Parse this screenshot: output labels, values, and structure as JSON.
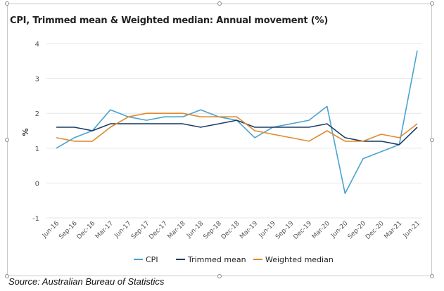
{
  "title": "CPI, Trimmed mean & Weighted median: Annual movement (%)",
  "source": "Source: Australian Bureau of Statistics",
  "colors": {
    "CPI": "#4aa3cf",
    "Trimmed mean": "#1b3f66",
    "Weighted median": "#e0892e",
    "grid": "#e6e6e6",
    "text": "#555555"
  },
  "chart_data": {
    "type": "line",
    "title": "CPI, Trimmed mean & Weighted median: Annual movement (%)",
    "ylabel": "%",
    "xlabel": "",
    "ylim": [
      -1,
      4
    ],
    "yticks": [
      -1,
      0,
      1,
      2,
      3,
      4
    ],
    "grid": "horizontal",
    "legend": "bottom",
    "categories": [
      "Jun-16",
      "Sep-16",
      "Dec-16",
      "Mar-17",
      "Jun-17",
      "Sep-17",
      "Dec-17",
      "Mar-18",
      "Jun-18",
      "Sep-18",
      "Dec-18",
      "Mar-19",
      "Jun-19",
      "Sep-19",
      "Dec-19",
      "Mar-20",
      "Jun-20",
      "Sep-20",
      "Dec-20",
      "Mar-21",
      "Jun-21"
    ],
    "series": [
      {
        "name": "CPI",
        "values": [
          1.0,
          1.3,
          1.5,
          2.1,
          1.9,
          1.8,
          1.9,
          1.9,
          2.1,
          1.9,
          1.8,
          1.3,
          1.6,
          1.7,
          1.8,
          2.2,
          -0.3,
          0.7,
          0.9,
          1.1,
          3.8
        ]
      },
      {
        "name": "Trimmed mean",
        "values": [
          1.6,
          1.6,
          1.5,
          1.7,
          1.7,
          1.7,
          1.7,
          1.7,
          1.6,
          1.7,
          1.8,
          1.6,
          1.6,
          1.6,
          1.6,
          1.7,
          1.3,
          1.2,
          1.2,
          1.1,
          1.6
        ]
      },
      {
        "name": "Weighted median",
        "values": [
          1.3,
          1.2,
          1.2,
          1.6,
          1.9,
          2.0,
          2.0,
          2.0,
          1.9,
          1.9,
          1.9,
          1.5,
          1.4,
          1.3,
          1.2,
          1.5,
          1.2,
          1.2,
          1.4,
          1.3,
          1.7
        ]
      }
    ]
  }
}
